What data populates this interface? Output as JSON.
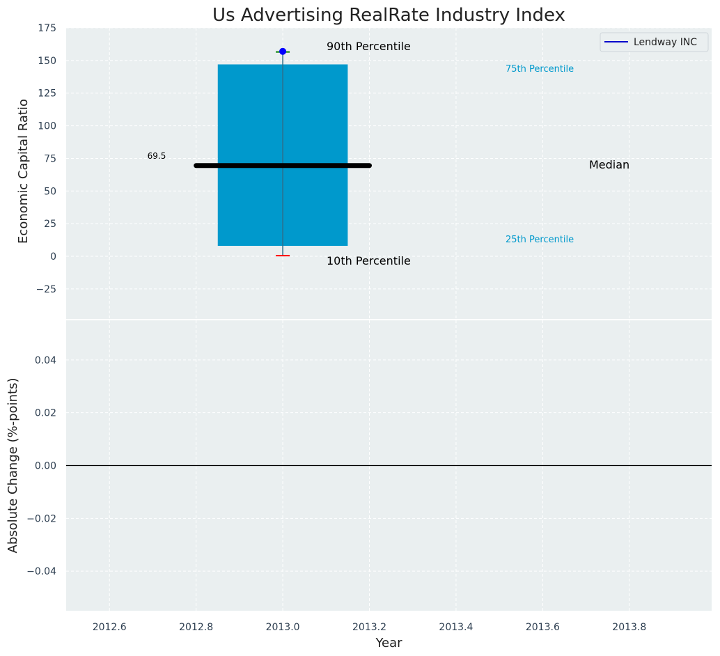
{
  "title": "Us Advertising RealRate Industry Index",
  "chart_data": [
    {
      "type": "bar",
      "panel": "top",
      "ylabel": "Economic Capital Ratio",
      "xlim": [
        2012.5,
        2013.99
      ],
      "ylim": [
        -48,
        175
      ],
      "yticks": [
        -25,
        0,
        25,
        50,
        75,
        100,
        125,
        150,
        175
      ],
      "ytick_labels": [
        "−25",
        "0",
        "25",
        "50",
        "75",
        "100",
        "125",
        "150",
        "175"
      ],
      "grid": true,
      "box": {
        "x": 2013.0,
        "half_width": 0.15,
        "p25": 8,
        "p75": 147,
        "p10": 0.5,
        "p90": 156.5,
        "median": 69.5
      },
      "median_line": {
        "x_from": 2012.8,
        "x_to": 2013.2,
        "value": 69.5,
        "label": "69.5"
      },
      "company_point": {
        "x": 2013.0,
        "value": 157,
        "color": "#0000ff"
      },
      "colors": {
        "box": "#0099cc",
        "median": "#000000",
        "whisker_low": "#ff0000",
        "whisker_high": "#008000",
        "background": "#eaeff0"
      },
      "annotations": {
        "p90": "90th Percentile",
        "p10": "10th Percentile",
        "p75": "75th Percentile",
        "p25": "25th Percentile",
        "median": "Median"
      },
      "legend": {
        "entries": [
          {
            "label": "Lendway INC",
            "color": "#0000cc"
          }
        ],
        "placement": "top-right"
      }
    },
    {
      "type": "line",
      "panel": "bottom",
      "xlabel": "Year",
      "ylabel": "Absolute Change (%-points)",
      "xlim": [
        2012.5,
        2013.99
      ],
      "ylim": [
        -0.055,
        0.055
      ],
      "xticks": [
        2012.6,
        2012.8,
        2013.0,
        2013.2,
        2013.4,
        2013.6,
        2013.8
      ],
      "xtick_labels": [
        "2012.6",
        "2012.8",
        "2013.0",
        "2013.2",
        "2013.4",
        "2013.6",
        "2013.8"
      ],
      "yticks": [
        -0.04,
        -0.02,
        0.0,
        0.02,
        0.04
      ],
      "ytick_labels": [
        "−0.04",
        "−0.02",
        "0.00",
        "0.02",
        "0.04"
      ],
      "zero_line": 0.0,
      "grid": true
    }
  ]
}
